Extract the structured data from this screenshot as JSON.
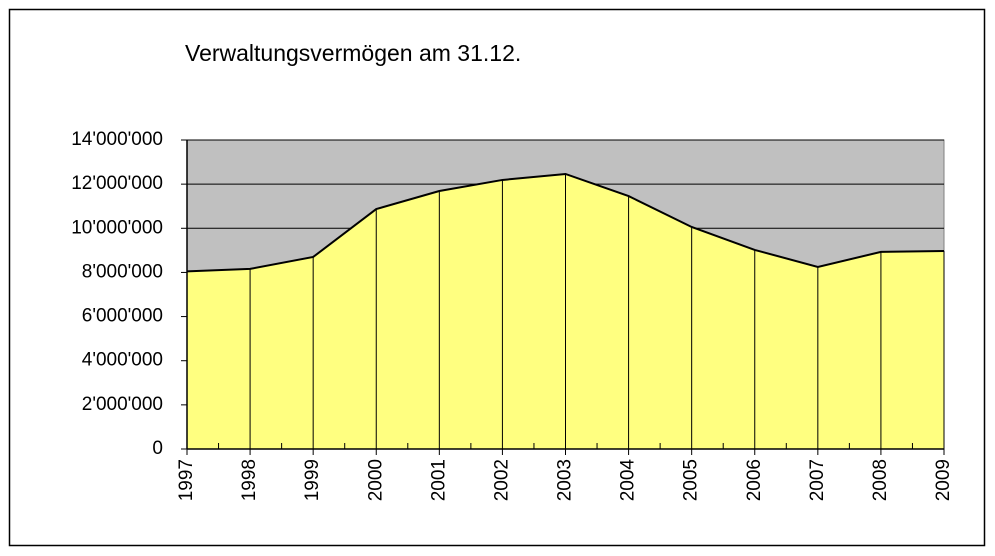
{
  "chart_data": {
    "type": "area",
    "title": "Verwaltungsvermögen am 31.12.",
    "categories": [
      "1997",
      "1998",
      "1999",
      "2000",
      "2001",
      "2002",
      "2003",
      "2004",
      "2005",
      "2006",
      "2007",
      "2008",
      "2009"
    ],
    "values": [
      8050000,
      8160000,
      8700000,
      10870000,
      11690000,
      12190000,
      12460000,
      11460000,
      10060000,
      9020000,
      8250000,
      8930000,
      8970000
    ],
    "color": "#ffff80",
    "line_color": "#000000",
    "plot_background": "#c0c0c0",
    "ylim": [
      0,
      14000000
    ],
    "yticks": [
      0,
      {
        "value": 2000000,
        "label": "2'000'000"
      },
      {
        "value": 4000000,
        "label": "4'000'000"
      },
      {
        "value": 6000000,
        "label": "6'000'000"
      },
      {
        "value": 8000000,
        "label": "8'000'000"
      },
      {
        "value": 10000000,
        "label": "10'000'000"
      },
      {
        "value": 12000000,
        "label": "12'000'000"
      },
      {
        "value": 14000000,
        "label": "14'000'000"
      }
    ],
    "grid": true
  }
}
